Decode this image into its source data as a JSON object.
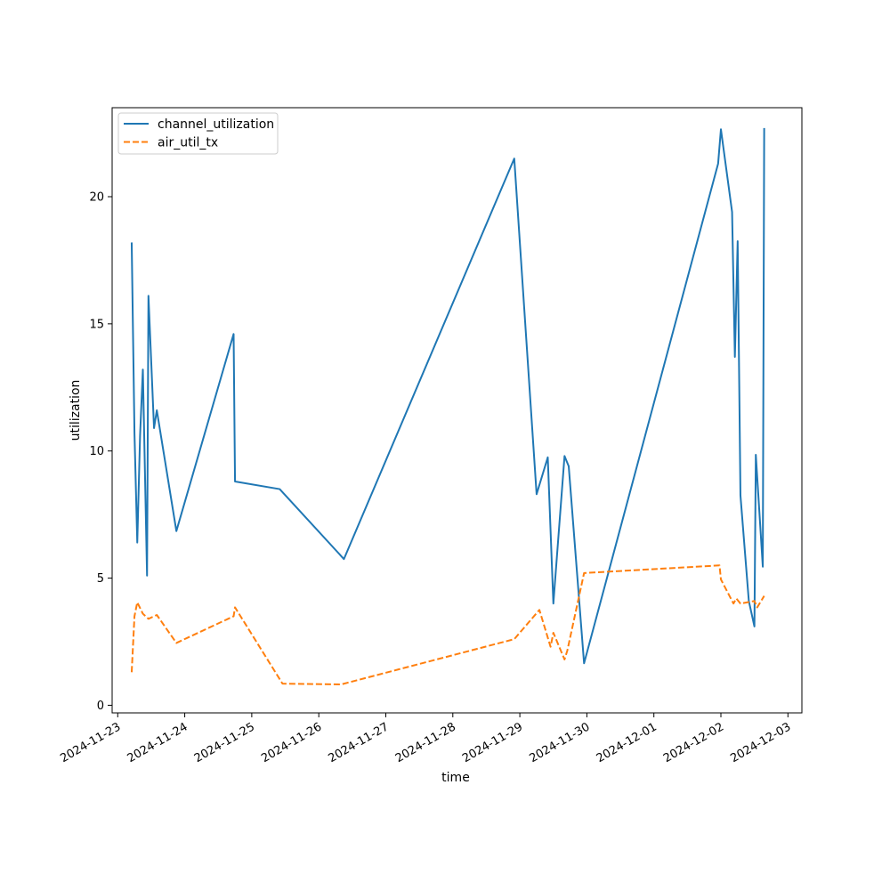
{
  "chart_data": {
    "type": "line",
    "title": "",
    "xlabel": "time",
    "ylabel": "utilization",
    "x_type": "datetime",
    "xlim": [
      "2024-11-22T22:00",
      "2024-12-03T05:00"
    ],
    "ylim": [
      -0.3,
      23.5
    ],
    "x_ticks": [
      "2024-11-23",
      "2024-11-24",
      "2024-11-25",
      "2024-11-26",
      "2024-11-27",
      "2024-11-28",
      "2024-11-29",
      "2024-11-30",
      "2024-12-01",
      "2024-12-02",
      "2024-12-03"
    ],
    "y_ticks": [
      "0",
      "5",
      "10",
      "15",
      "20"
    ],
    "legend_position": "top-left",
    "grid": false,
    "series": [
      {
        "name": "channel_utilization",
        "color": "#1f77b4",
        "dash": "solid",
        "points": [
          [
            "2024-11-23T05:00",
            18.2
          ],
          [
            "2024-11-23T06:00",
            10.7
          ],
          [
            "2024-11-23T07:00",
            6.4
          ],
          [
            "2024-11-23T08:00",
            10.6
          ],
          [
            "2024-11-23T09:00",
            13.2
          ],
          [
            "2024-11-23T10:30",
            5.1
          ],
          [
            "2024-11-23T11:00",
            16.1
          ],
          [
            "2024-11-23T13:00",
            10.9
          ],
          [
            "2024-11-23T14:00",
            11.6
          ],
          [
            "2024-11-23T21:00",
            6.85
          ],
          [
            "2024-11-24T17:30",
            14.6
          ],
          [
            "2024-11-24T18:00",
            8.8
          ],
          [
            "2024-11-25T10:00",
            8.5
          ],
          [
            "2024-11-26T09:00",
            5.75
          ],
          [
            "2024-11-28T22:00",
            21.5
          ],
          [
            "2024-11-29T06:00",
            8.3
          ],
          [
            "2024-11-29T10:00",
            9.75
          ],
          [
            "2024-11-29T12:00",
            4.0
          ],
          [
            "2024-11-29T16:00",
            9.8
          ],
          [
            "2024-11-29T17:30",
            9.4
          ],
          [
            "2024-11-29T23:00",
            1.65
          ],
          [
            "2024-12-01T23:00",
            21.3
          ],
          [
            "2024-12-02T00:00",
            22.65
          ],
          [
            "2024-12-02T04:00",
            19.4
          ],
          [
            "2024-12-02T05:00",
            13.7
          ],
          [
            "2024-12-02T06:00",
            18.25
          ],
          [
            "2024-12-02T07:00",
            8.25
          ],
          [
            "2024-12-02T10:00",
            4.1
          ],
          [
            "2024-12-02T12:00",
            3.1
          ],
          [
            "2024-12-02T12:30",
            9.85
          ],
          [
            "2024-12-02T15:00",
            5.45
          ],
          [
            "2024-12-02T15:30",
            22.7
          ]
        ]
      },
      {
        "name": "air_util_tx",
        "color": "#ff7f0e",
        "dash": "dashed",
        "points": [
          [
            "2024-11-23T05:00",
            1.3
          ],
          [
            "2024-11-23T06:00",
            3.5
          ],
          [
            "2024-11-23T07:00",
            4.05
          ],
          [
            "2024-11-23T09:00",
            3.6
          ],
          [
            "2024-11-23T11:00",
            3.4
          ],
          [
            "2024-11-23T14:00",
            3.55
          ],
          [
            "2024-11-23T21:00",
            2.45
          ],
          [
            "2024-11-24T17:30",
            3.5
          ],
          [
            "2024-11-24T18:00",
            3.85
          ],
          [
            "2024-11-25T11:00",
            0.85
          ],
          [
            "2024-11-26T08:00",
            0.82
          ],
          [
            "2024-11-28T22:00",
            2.6
          ],
          [
            "2024-11-29T07:00",
            3.75
          ],
          [
            "2024-11-29T11:00",
            2.3
          ],
          [
            "2024-11-29T12:00",
            2.85
          ],
          [
            "2024-11-29T16:00",
            1.8
          ],
          [
            "2024-11-29T17:00",
            2.15
          ],
          [
            "2024-11-29T23:00",
            5.2
          ],
          [
            "2024-12-01T23:30",
            5.5
          ],
          [
            "2024-12-02T00:00",
            4.95
          ],
          [
            "2024-12-02T04:30",
            4.0
          ],
          [
            "2024-12-02T05:30",
            4.2
          ],
          [
            "2024-12-02T07:00",
            4.0
          ],
          [
            "2024-12-02T12:00",
            4.1
          ],
          [
            "2024-12-02T13:00",
            3.85
          ],
          [
            "2024-12-02T15:30",
            4.3
          ]
        ]
      }
    ]
  }
}
